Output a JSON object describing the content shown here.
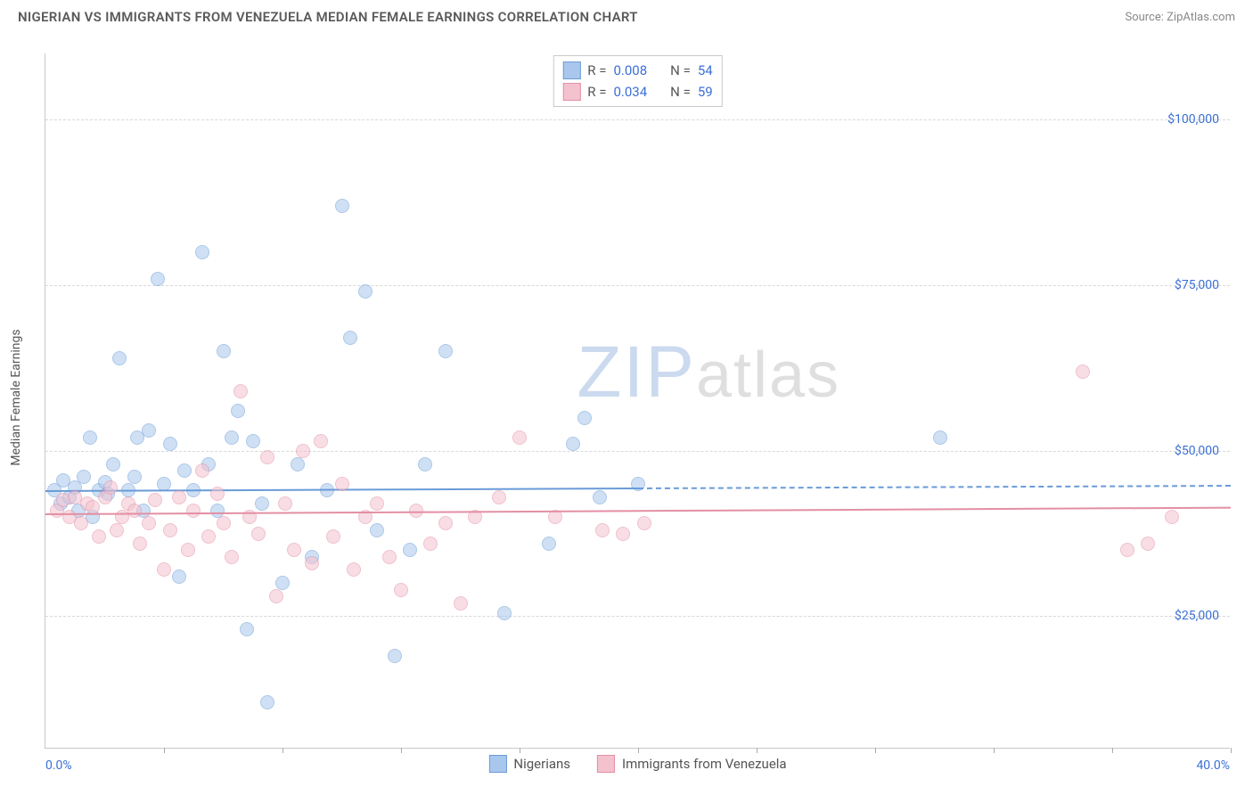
{
  "title": "NIGERIAN VS IMMIGRANTS FROM VENEZUELA MEDIAN FEMALE EARNINGS CORRELATION CHART",
  "source": "Source: ZipAtlas.com",
  "watermark": {
    "zip": "ZIP",
    "rest": "atlas"
  },
  "chart": {
    "type": "scatter",
    "ylabel": "Median Female Earnings",
    "xlim": [
      0,
      40
    ],
    "ylim": [
      5000,
      110000
    ],
    "x_min_label": "0.0%",
    "x_max_label": "40.0%",
    "y_ticks": [
      25000,
      50000,
      75000,
      100000
    ],
    "y_tick_labels": [
      "$25,000",
      "$50,000",
      "$75,000",
      "$100,000"
    ],
    "x_tick_positions": [
      0,
      4,
      8,
      12,
      16,
      20,
      24,
      28,
      32,
      36,
      40
    ],
    "grid_color": "#d8d8d8",
    "axis_color": "#c8c8c8",
    "background_color": "#ffffff",
    "marker_radius": 8,
    "marker_opacity": 0.55,
    "marker_border_opacity": 0.9,
    "series": [
      {
        "name": "Nigerians",
        "fill_color": "#a9c7ec",
        "stroke_color": "#6a9bd8",
        "r_value": "0.008",
        "n_value": "54",
        "trend": {
          "y_start": 44000,
          "y_end": 44800,
          "solid_until_x": 20
        },
        "points": [
          [
            0.3,
            44000
          ],
          [
            0.5,
            42000
          ],
          [
            0.6,
            45500
          ],
          [
            0.8,
            43000
          ],
          [
            1.0,
            44500
          ],
          [
            1.1,
            41000
          ],
          [
            1.3,
            46000
          ],
          [
            1.5,
            52000
          ],
          [
            1.6,
            40000
          ],
          [
            1.8,
            44000
          ],
          [
            2.0,
            45200
          ],
          [
            2.1,
            43500
          ],
          [
            2.3,
            48000
          ],
          [
            2.5,
            64000
          ],
          [
            2.8,
            44000
          ],
          [
            3.0,
            46000
          ],
          [
            3.1,
            52000
          ],
          [
            3.3,
            41000
          ],
          [
            3.5,
            53000
          ],
          [
            3.8,
            76000
          ],
          [
            4.0,
            45000
          ],
          [
            4.2,
            51000
          ],
          [
            4.5,
            31000
          ],
          [
            4.7,
            47000
          ],
          [
            5.0,
            44000
          ],
          [
            5.3,
            80000
          ],
          [
            5.5,
            48000
          ],
          [
            5.8,
            41000
          ],
          [
            6.0,
            65000
          ],
          [
            6.3,
            52000
          ],
          [
            6.5,
            56000
          ],
          [
            6.8,
            23000
          ],
          [
            7.0,
            51500
          ],
          [
            7.3,
            42000
          ],
          [
            7.5,
            12000
          ],
          [
            8.0,
            30000
          ],
          [
            8.5,
            48000
          ],
          [
            9.0,
            34000
          ],
          [
            9.5,
            44000
          ],
          [
            10.0,
            87000
          ],
          [
            10.3,
            67000
          ],
          [
            10.8,
            74000
          ],
          [
            11.2,
            38000
          ],
          [
            11.8,
            19000
          ],
          [
            12.3,
            35000
          ],
          [
            12.8,
            48000
          ],
          [
            13.5,
            65000
          ],
          [
            15.5,
            25500
          ],
          [
            17.0,
            36000
          ],
          [
            17.8,
            51000
          ],
          [
            18.2,
            55000
          ],
          [
            18.7,
            43000
          ],
          [
            20.0,
            45000
          ],
          [
            30.2,
            52000
          ]
        ]
      },
      {
        "name": "Immigrants from Venezuela",
        "fill_color": "#f4c2cf",
        "stroke_color": "#e38fa4",
        "r_value": "0.034",
        "n_value": "59",
        "trend": {
          "y_start": 40500,
          "y_end": 41500,
          "solid_until_x": 40
        },
        "points": [
          [
            0.4,
            41000
          ],
          [
            0.6,
            42500
          ],
          [
            0.8,
            40000
          ],
          [
            1.0,
            43000
          ],
          [
            1.2,
            39000
          ],
          [
            1.4,
            42000
          ],
          [
            1.6,
            41500
          ],
          [
            1.8,
            37000
          ],
          [
            2.0,
            43000
          ],
          [
            2.2,
            44500
          ],
          [
            2.4,
            38000
          ],
          [
            2.6,
            40000
          ],
          [
            2.8,
            42000
          ],
          [
            3.0,
            41000
          ],
          [
            3.2,
            36000
          ],
          [
            3.5,
            39000
          ],
          [
            3.7,
            42500
          ],
          [
            4.0,
            32000
          ],
          [
            4.2,
            38000
          ],
          [
            4.5,
            43000
          ],
          [
            4.8,
            35000
          ],
          [
            5.0,
            41000
          ],
          [
            5.3,
            47000
          ],
          [
            5.5,
            37000
          ],
          [
            5.8,
            43500
          ],
          [
            6.0,
            39000
          ],
          [
            6.3,
            34000
          ],
          [
            6.6,
            59000
          ],
          [
            6.9,
            40000
          ],
          [
            7.2,
            37500
          ],
          [
            7.5,
            49000
          ],
          [
            7.8,
            28000
          ],
          [
            8.1,
            42000
          ],
          [
            8.4,
            35000
          ],
          [
            8.7,
            50000
          ],
          [
            9.0,
            33000
          ],
          [
            9.3,
            51500
          ],
          [
            9.7,
            37000
          ],
          [
            10.0,
            45000
          ],
          [
            10.4,
            32000
          ],
          [
            10.8,
            40000
          ],
          [
            11.2,
            42000
          ],
          [
            11.6,
            34000
          ],
          [
            12.0,
            29000
          ],
          [
            12.5,
            41000
          ],
          [
            13.0,
            36000
          ],
          [
            13.5,
            39000
          ],
          [
            14.0,
            27000
          ],
          [
            14.5,
            40000
          ],
          [
            15.3,
            43000
          ],
          [
            16.0,
            52000
          ],
          [
            17.2,
            40000
          ],
          [
            18.8,
            38000
          ],
          [
            19.5,
            37500
          ],
          [
            20.2,
            39000
          ],
          [
            35.0,
            62000
          ],
          [
            36.5,
            35000
          ],
          [
            37.2,
            36000
          ],
          [
            38.0,
            40000
          ]
        ]
      }
    ]
  },
  "legend": {
    "r_label": "R =",
    "n_label": "N ="
  }
}
